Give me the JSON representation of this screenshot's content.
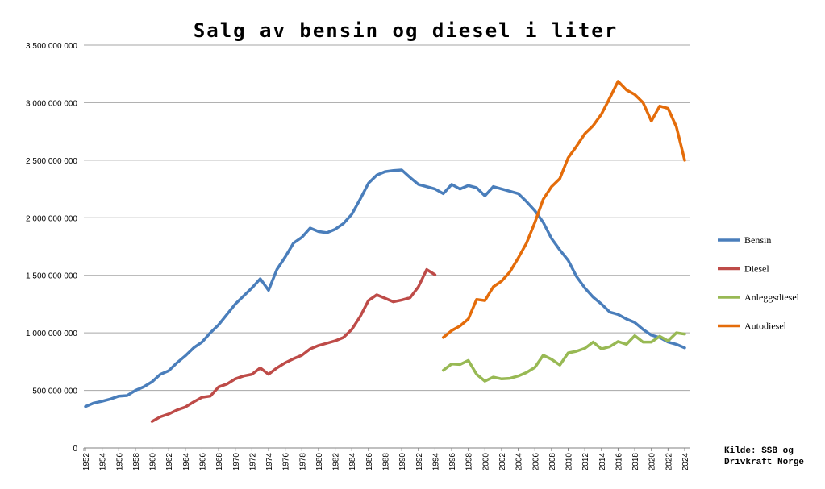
{
  "chart_data": {
    "type": "line",
    "title": "Salg av bensin og diesel i liter",
    "xlabel": "",
    "ylabel": "",
    "ylim": [
      0,
      3500000000
    ],
    "yticks": [
      "0",
      "500 000 000",
      "1 000 000 000",
      "1 500 000 000",
      "2 000 000 000",
      "2 500 000 000",
      "3 000 000 000",
      "3 500 000 000"
    ],
    "xlim": [
      1952,
      2024
    ],
    "xtick_labels": [
      "1952",
      "1954",
      "1956",
      "1958",
      "1960",
      "1962",
      "1964",
      "1966",
      "1968",
      "1970",
      "1972",
      "1974",
      "1976",
      "1978",
      "1980",
      "1982",
      "1984",
      "1986",
      "1988",
      "1990",
      "1992",
      "1994",
      "1996",
      "1998",
      "2000",
      "2002",
      "2004",
      "2006",
      "2008",
      "2010",
      "2012",
      "2014",
      "2016",
      "2018",
      "2020",
      "2022",
      "2024"
    ],
    "grid": "horizontal",
    "legend_position": "right",
    "series": [
      {
        "name": "Bensin",
        "color": "#4a7ebb",
        "x": [
          1952,
          1953,
          1954,
          1955,
          1956,
          1957,
          1958,
          1959,
          1960,
          1961,
          1962,
          1963,
          1964,
          1965,
          1966,
          1967,
          1968,
          1969,
          1970,
          1971,
          1972,
          1973,
          1974,
          1975,
          1976,
          1977,
          1978,
          1979,
          1980,
          1981,
          1982,
          1983,
          1984,
          1985,
          1986,
          1987,
          1988,
          1989,
          1990,
          1991,
          1992,
          1993,
          1994,
          1995,
          1996,
          1997,
          1998,
          1999,
          2000,
          2001,
          2002,
          2003,
          2004,
          2005,
          2006,
          2007,
          2008,
          2009,
          2010,
          2011,
          2012,
          2013,
          2014,
          2015,
          2016,
          2017,
          2018,
          2019,
          2020,
          2021,
          2022,
          2023,
          2024
        ],
        "values": [
          360000000,
          390000000,
          405000000,
          425000000,
          450000000,
          455000000,
          500000000,
          530000000,
          575000000,
          640000000,
          670000000,
          740000000,
          800000000,
          870000000,
          920000000,
          1000000000,
          1070000000,
          1160000000,
          1250000000,
          1320000000,
          1390000000,
          1470000000,
          1370000000,
          1550000000,
          1660000000,
          1780000000,
          1830000000,
          1910000000,
          1880000000,
          1870000000,
          1900000000,
          1950000000,
          2030000000,
          2160000000,
          2300000000,
          2370000000,
          2400000000,
          2410000000,
          2415000000,
          2350000000,
          2290000000,
          2270000000,
          2250000000,
          2210000000,
          2290000000,
          2250000000,
          2280000000,
          2260000000,
          2190000000,
          2270000000,
          2250000000,
          2230000000,
          2210000000,
          2140000000,
          2060000000,
          1960000000,
          1820000000,
          1720000000,
          1630000000,
          1490000000,
          1390000000,
          1310000000,
          1250000000,
          1180000000,
          1160000000,
          1120000000,
          1090000000,
          1030000000,
          980000000,
          960000000,
          920000000,
          900000000,
          870000000
        ]
      },
      {
        "name": "Diesel",
        "color": "#be4b48",
        "x": [
          1960,
          1961,
          1962,
          1963,
          1964,
          1965,
          1966,
          1967,
          1968,
          1969,
          1970,
          1971,
          1972,
          1973,
          1974,
          1975,
          1976,
          1977,
          1978,
          1979,
          1980,
          1981,
          1982,
          1983,
          1984,
          1985,
          1986,
          1987,
          1988,
          1989,
          1990,
          1991,
          1992,
          1993,
          1994
        ],
        "values": [
          230000000,
          270000000,
          295000000,
          330000000,
          355000000,
          400000000,
          440000000,
          450000000,
          530000000,
          555000000,
          600000000,
          625000000,
          640000000,
          695000000,
          640000000,
          695000000,
          740000000,
          775000000,
          805000000,
          860000000,
          890000000,
          910000000,
          930000000,
          960000000,
          1030000000,
          1140000000,
          1280000000,
          1330000000,
          1300000000,
          1270000000,
          1285000000,
          1305000000,
          1400000000,
          1550000000,
          1505000000
        ]
      },
      {
        "name": "Anleggsdiesel",
        "color": "#98b954",
        "x": [
          1995,
          1996,
          1997,
          1998,
          1999,
          2000,
          2001,
          2002,
          2003,
          2004,
          2005,
          2006,
          2007,
          2008,
          2009,
          2010,
          2011,
          2012,
          2013,
          2014,
          2015,
          2016,
          2017,
          2018,
          2019,
          2020,
          2021,
          2022,
          2023,
          2024
        ],
        "values": [
          675000000,
          730000000,
          725000000,
          760000000,
          640000000,
          580000000,
          615000000,
          600000000,
          605000000,
          625000000,
          655000000,
          700000000,
          805000000,
          770000000,
          720000000,
          825000000,
          840000000,
          865000000,
          920000000,
          860000000,
          880000000,
          925000000,
          900000000,
          975000000,
          920000000,
          920000000,
          970000000,
          930000000,
          1000000000,
          990000000
        ]
      },
      {
        "name": "Autodiesel",
        "color": "#e46c0a",
        "x": [
          1995,
          1996,
          1997,
          1998,
          1999,
          2000,
          2001,
          2002,
          2003,
          2004,
          2005,
          2006,
          2007,
          2008,
          2009,
          2010,
          2011,
          2012,
          2013,
          2014,
          2015,
          2016,
          2017,
          2018,
          2019,
          2020,
          2021,
          2022,
          2023,
          2024
        ],
        "values": [
          960000000,
          1020000000,
          1060000000,
          1120000000,
          1290000000,
          1280000000,
          1400000000,
          1450000000,
          1530000000,
          1650000000,
          1780000000,
          1960000000,
          2160000000,
          2270000000,
          2340000000,
          2520000000,
          2620000000,
          2730000000,
          2800000000,
          2900000000,
          3040000000,
          3185000000,
          3110000000,
          3070000000,
          3000000000,
          2840000000,
          2970000000,
          2950000000,
          2790000000,
          2500000000
        ]
      }
    ]
  },
  "source_line1": "Kilde: SSB og",
  "source_line2": "Drivkraft Norge"
}
